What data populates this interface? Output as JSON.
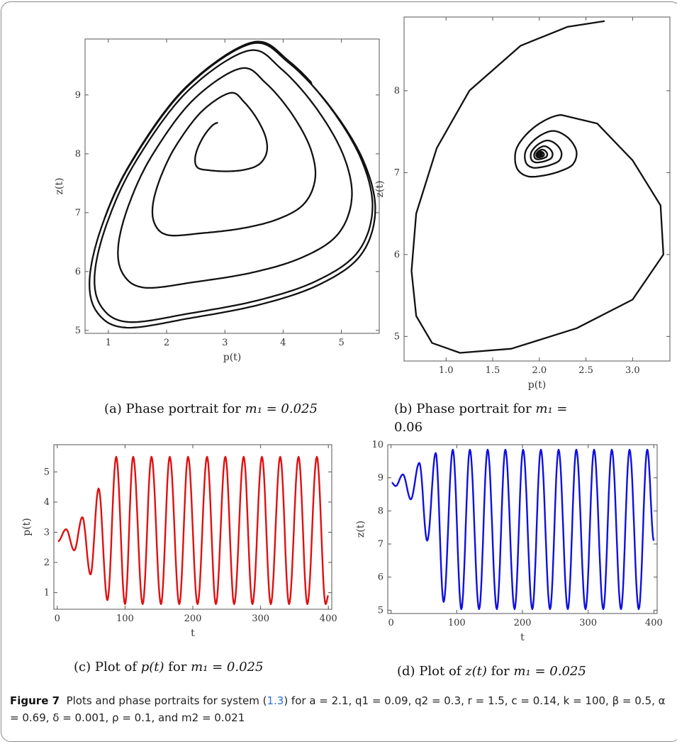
{
  "caption": {
    "label": "Figure 7",
    "text_before": "Plots and phase portraits for system (",
    "ref": "1.3",
    "text_after": ") for a = 2.1, q1 = 0.09, q2 = 0.3, r = 1.5, c = 0.14, k = 100, β = 0.5, α = 0.69, δ = 0.001, ρ = 0.1, and m2 = 0.021"
  },
  "subcaptions": {
    "a": {
      "prefix": "(a) Phase portrait for ",
      "math": "m₁ = 0.025"
    },
    "b": {
      "prefix": "(b) Phase portrait for ",
      "math": "m₁ =",
      "line2": "0.06"
    },
    "c": {
      "prefix": "(c) Plot of ",
      "fn": "p(t)",
      "mid": " for ",
      "math": "m₁ = 0.025"
    },
    "d": {
      "prefix": "(d) Plot of ",
      "fn": "z(t)",
      "mid": " for ",
      "math": "m₁ = 0.025"
    }
  },
  "chart_data": [
    {
      "id": "a",
      "type": "line",
      "kind": "phase-portrait",
      "xlabel": "p(t)",
      "ylabel": "z(t)",
      "xlim": [
        0.6,
        5.65
      ],
      "ylim": [
        4.95,
        9.95
      ],
      "xticks": [
        1,
        2,
        3,
        4,
        5
      ],
      "yticks": [
        5,
        6,
        7,
        8,
        9
      ],
      "color": "#111111",
      "trajectory": {
        "start": [
          2.7,
          8.8
        ],
        "equilibrium": [
          2.85,
          8.45
        ],
        "limit_cycle_p_range": [
          0.65,
          5.55
        ],
        "limit_cycle_z_range": [
          5.02,
          9.88
        ]
      }
    },
    {
      "id": "b",
      "type": "line",
      "kind": "phase-portrait",
      "xlabel": "p(t)",
      "ylabel": "z(t)",
      "xlim": [
        0.55,
        3.4
      ],
      "ylim": [
        4.7,
        8.9
      ],
      "xticks": [
        1.0,
        1.5,
        2.0,
        2.5,
        3.0
      ],
      "yticks": [
        5,
        6,
        7,
        8
      ],
      "color": "#111111",
      "trajectory": {
        "start": [
          2.7,
          8.85
        ],
        "equilibrium": [
          2.0,
          7.22
        ]
      }
    },
    {
      "id": "c",
      "type": "line",
      "kind": "time-series",
      "xlabel": "t",
      "ylabel": "p(t)",
      "xlim": [
        -5,
        405
      ],
      "ylim": [
        0.45,
        5.9
      ],
      "xticks": [
        0,
        100,
        200,
        300,
        400
      ],
      "yticks": [
        1,
        2,
        3,
        4,
        5
      ],
      "color": "#e01010",
      "peaks": [
        [
          13,
          3.1
        ],
        [
          37,
          3.5
        ],
        [
          61,
          4.45
        ],
        [
          87,
          5.5
        ],
        [
          112,
          5.5
        ],
        [
          139,
          5.5
        ],
        [
          166,
          5.5
        ],
        [
          193,
          5.5
        ],
        [
          221,
          5.5
        ],
        [
          248,
          5.5
        ],
        [
          275,
          5.5
        ],
        [
          302,
          5.5
        ],
        [
          329,
          5.5
        ],
        [
          356,
          5.5
        ],
        [
          383,
          5.5
        ]
      ],
      "troughs": [
        [
          1,
          2.7
        ],
        [
          25,
          2.4
        ],
        [
          49,
          1.6
        ],
        [
          74,
          0.75
        ],
        [
          100,
          0.62
        ],
        [
          126,
          0.62
        ],
        [
          153,
          0.62
        ],
        [
          180,
          0.62
        ],
        [
          207,
          0.62
        ],
        [
          234,
          0.62
        ],
        [
          261,
          0.62
        ],
        [
          288,
          0.62
        ],
        [
          315,
          0.62
        ],
        [
          342,
          0.62
        ],
        [
          369,
          0.62
        ],
        [
          396,
          0.62
        ]
      ],
      "end": [
        400,
        0.9
      ]
    },
    {
      "id": "d",
      "type": "line",
      "kind": "time-series",
      "xlabel": "t",
      "ylabel": "z(t)",
      "xlim": [
        -5,
        405
      ],
      "ylim": [
        4.9,
        10.0
      ],
      "xticks": [
        0,
        100,
        200,
        300,
        400
      ],
      "yticks": [
        5,
        6,
        7,
        8,
        9,
        10
      ],
      "color": "#1010e0",
      "peaks": [
        [
          1,
          8.85
        ],
        [
          18,
          9.1
        ],
        [
          43,
          9.45
        ],
        [
          68,
          9.75
        ],
        [
          94,
          9.85
        ],
        [
          120,
          9.85
        ],
        [
          147,
          9.85
        ],
        [
          174,
          9.85
        ],
        [
          201,
          9.85
        ],
        [
          228,
          9.85
        ],
        [
          255,
          9.85
        ],
        [
          282,
          9.85
        ],
        [
          309,
          9.85
        ],
        [
          336,
          9.85
        ],
        [
          363,
          9.85
        ],
        [
          390,
          9.85
        ]
      ],
      "troughs": [
        [
          7,
          8.75
        ],
        [
          30,
          8.35
        ],
        [
          55,
          7.1
        ],
        [
          80,
          5.25
        ],
        [
          107,
          5.03
        ],
        [
          134,
          5.03
        ],
        [
          161,
          5.03
        ],
        [
          188,
          5.03
        ],
        [
          215,
          5.03
        ],
        [
          242,
          5.03
        ],
        [
          269,
          5.03
        ],
        [
          296,
          5.03
        ],
        [
          323,
          5.03
        ],
        [
          350,
          5.03
        ],
        [
          377,
          5.03
        ]
      ],
      "end": [
        400,
        7.1
      ]
    }
  ]
}
